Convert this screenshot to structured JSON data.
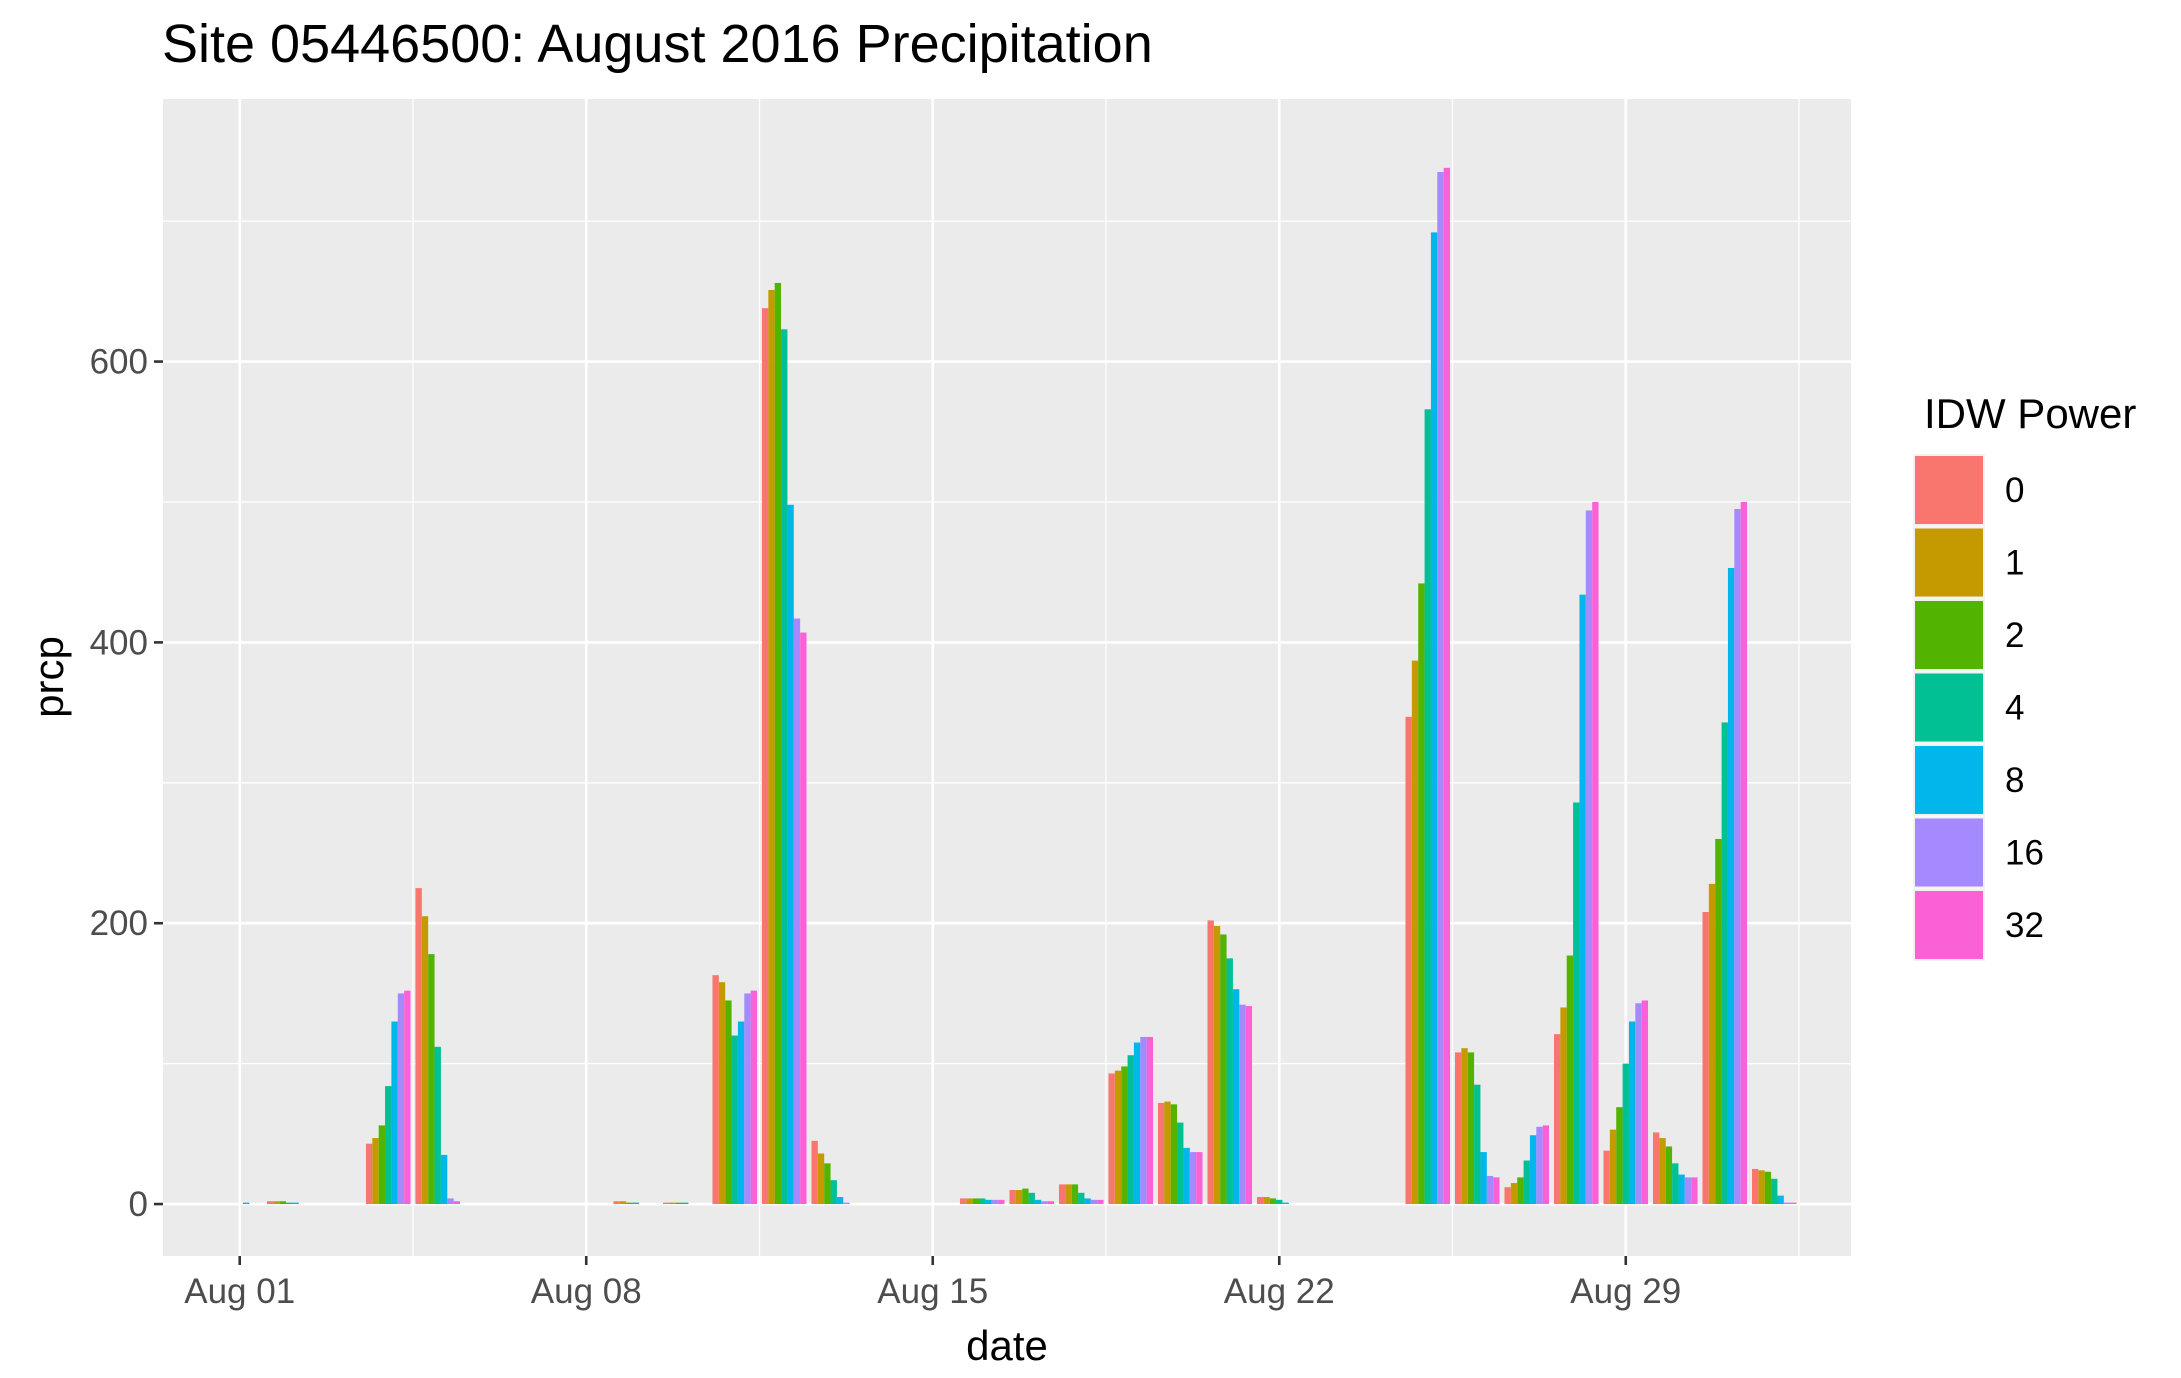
{
  "chart_data": {
    "type": "bar",
    "title": "Site 05446500: August 2016 Precipitation",
    "xlabel": "date",
    "ylabel": "prcp",
    "x_ticks": [
      "Aug 01",
      "Aug 08",
      "Aug 15",
      "Aug 22",
      "Aug 29"
    ],
    "x_tick_days": [
      1,
      8,
      15,
      22,
      29
    ],
    "xlim_days": [
      -0.55,
      33.55
    ],
    "y_ticks": [
      0,
      200,
      400,
      600
    ],
    "ylim": [
      -37,
      787
    ],
    "grid": true,
    "legend_position": "right",
    "legend": {
      "title": "IDW Power",
      "entries": [
        {
          "label": "0",
          "color": "#F8766D"
        },
        {
          "label": "1",
          "color": "#C49A00"
        },
        {
          "label": "2",
          "color": "#53B400"
        },
        {
          "label": "4",
          "color": "#00C094"
        },
        {
          "label": "8",
          "color": "#00B6EB"
        },
        {
          "label": "16",
          "color": "#A58AFF"
        },
        {
          "label": "32",
          "color": "#FB61D7"
        }
      ]
    },
    "series": [
      {
        "name": "0",
        "values": [
          0,
          2,
          0,
          43,
          225,
          0,
          0,
          0,
          2,
          1,
          163,
          638,
          45,
          0,
          0,
          4,
          10,
          14,
          93,
          72,
          202,
          5,
          0,
          0,
          347,
          108,
          12,
          121,
          38,
          51,
          208,
          25
        ]
      },
      {
        "name": "1",
        "values": [
          0,
          2,
          0,
          47,
          205,
          0,
          0,
          0,
          2,
          1,
          158,
          651,
          36,
          0,
          0,
          4,
          10,
          14,
          95,
          73,
          198,
          5,
          0,
          0,
          387,
          111,
          15,
          140,
          53,
          47,
          228,
          24
        ]
      },
      {
        "name": "2",
        "values": [
          0,
          2,
          0,
          56,
          178,
          0,
          0,
          0,
          1,
          1,
          145,
          656,
          29,
          0,
          0,
          4,
          11,
          14,
          98,
          71,
          192,
          4,
          0,
          0,
          442,
          108,
          19,
          177,
          69,
          41,
          260,
          23
        ]
      },
      {
        "name": "4",
        "values": [
          0,
          1,
          0,
          84,
          112,
          0,
          0,
          0,
          1,
          1,
          120,
          623,
          17,
          0,
          0,
          4,
          8,
          8,
          106,
          58,
          175,
          3,
          0,
          0,
          566,
          85,
          31,
          286,
          100,
          29,
          343,
          18
        ]
      },
      {
        "name": "8",
        "values": [
          1,
          1,
          0,
          130,
          35,
          0,
          0,
          0,
          0,
          0,
          130,
          498,
          5,
          0,
          0,
          3,
          3,
          4,
          115,
          40,
          153,
          1,
          0,
          0,
          692,
          37,
          49,
          434,
          130,
          21,
          453,
          6
        ]
      },
      {
        "name": "16",
        "values": [
          0,
          0,
          0,
          150,
          4,
          0,
          0,
          0,
          0,
          0,
          150,
          417,
          1,
          0,
          0,
          3,
          2,
          3,
          119,
          37,
          142,
          0,
          0,
          0,
          735,
          20,
          55,
          494,
          143,
          19,
          495,
          1
        ]
      },
      {
        "name": "32",
        "values": [
          0,
          0,
          0,
          152,
          2,
          0,
          0,
          0,
          0,
          0,
          152,
          407,
          0,
          0,
          0,
          3,
          2,
          3,
          119,
          37,
          141,
          0,
          0,
          0,
          738,
          19,
          56,
          500,
          145,
          19,
          500,
          1
        ]
      }
    ]
  }
}
